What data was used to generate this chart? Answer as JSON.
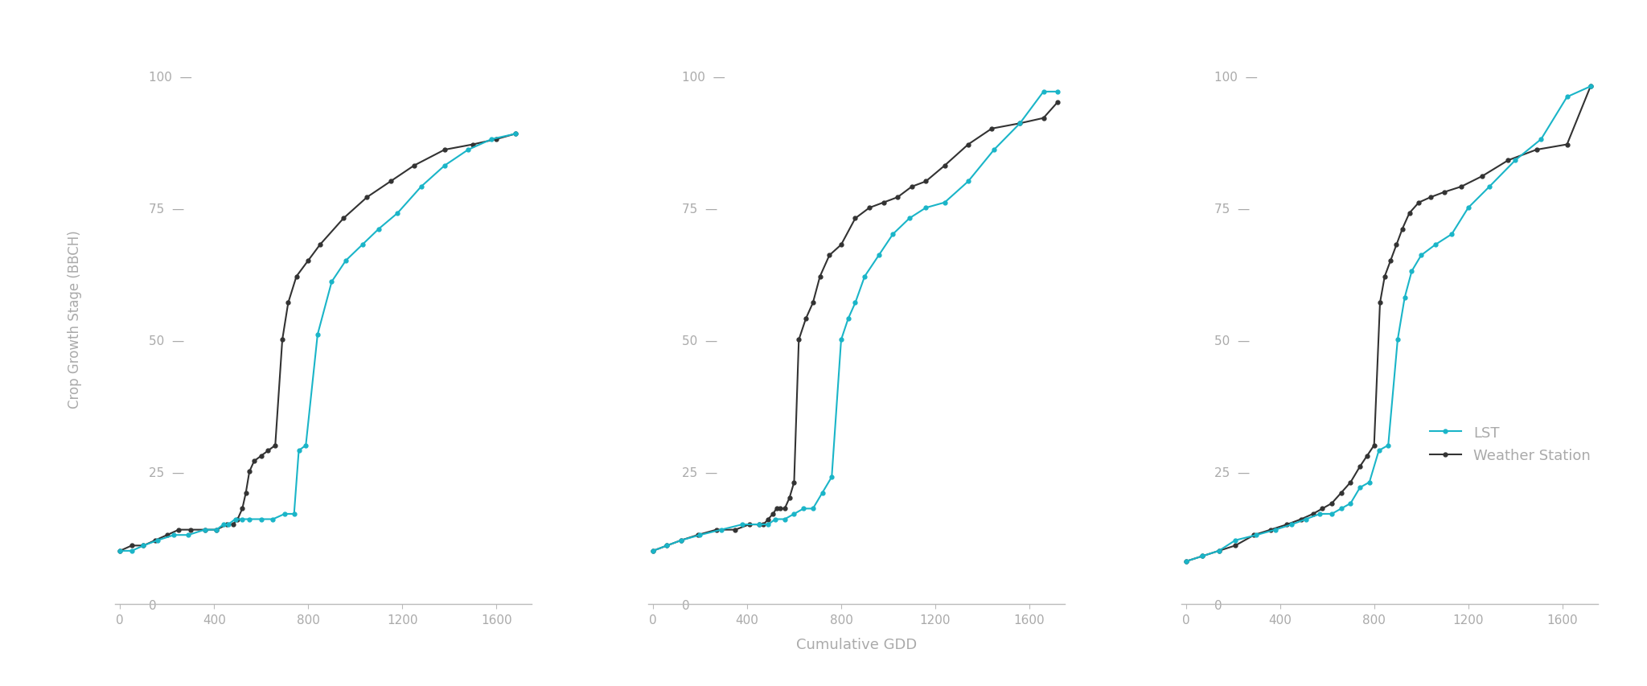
{
  "lst_color": "#1ab5c8",
  "ws_color": "#333333",
  "bg_color": "#ffffff",
  "tick_color": "#bbbbbb",
  "label_color": "#aaaaaa",
  "ylabel": "Crop Growth Stage (BBCH)",
  "xlabel": "Cumulative GDD",
  "legend_labels": [
    "LST",
    "Weather Station"
  ],
  "ylim": [
    0,
    108
  ],
  "xlim": [
    -20,
    1750
  ],
  "yticks": [
    0,
    25,
    50,
    75,
    100
  ],
  "xticks": [
    0,
    400,
    800,
    1200,
    1600
  ],
  "year2021_lst_x": [
    0,
    50,
    100,
    160,
    230,
    290,
    360,
    410,
    440,
    460,
    490,
    520,
    550,
    600,
    650,
    700,
    740,
    760,
    790,
    840,
    900,
    960,
    1030,
    1100,
    1180,
    1280,
    1380,
    1480,
    1580,
    1680
  ],
  "year2021_lst_y": [
    10,
    10,
    11,
    12,
    13,
    13,
    14,
    14,
    15,
    15,
    16,
    16,
    16,
    16,
    16,
    17,
    17,
    29,
    30,
    51,
    61,
    65,
    68,
    71,
    74,
    79,
    83,
    86,
    88,
    89
  ],
  "year2021_ws_x": [
    0,
    50,
    100,
    150,
    200,
    250,
    300,
    360,
    410,
    455,
    480,
    500,
    520,
    535,
    550,
    570,
    600,
    630,
    660,
    690,
    715,
    750,
    800,
    850,
    950,
    1050,
    1150,
    1250,
    1380,
    1500,
    1600,
    1680
  ],
  "year2021_ws_y": [
    10,
    11,
    11,
    12,
    13,
    14,
    14,
    14,
    14,
    15,
    15,
    16,
    18,
    21,
    25,
    27,
    28,
    29,
    30,
    50,
    57,
    62,
    65,
    68,
    73,
    77,
    80,
    83,
    86,
    87,
    88,
    89
  ],
  "year2022_lst_x": [
    0,
    60,
    120,
    200,
    290,
    380,
    450,
    490,
    520,
    560,
    600,
    640,
    680,
    720,
    760,
    800,
    830,
    860,
    900,
    960,
    1020,
    1090,
    1160,
    1240,
    1340,
    1450,
    1560,
    1660,
    1720
  ],
  "year2022_lst_y": [
    10,
    11,
    12,
    13,
    14,
    15,
    15,
    15,
    16,
    16,
    17,
    18,
    18,
    21,
    24,
    50,
    54,
    57,
    62,
    66,
    70,
    73,
    75,
    76,
    80,
    86,
    91,
    97,
    97
  ],
  "year2022_ws_x": [
    0,
    60,
    120,
    190,
    270,
    350,
    410,
    450,
    470,
    490,
    510,
    525,
    540,
    560,
    580,
    600,
    620,
    650,
    680,
    710,
    750,
    800,
    860,
    920,
    980,
    1040,
    1100,
    1160,
    1240,
    1340,
    1440,
    1560,
    1660,
    1720
  ],
  "year2022_ws_y": [
    10,
    11,
    12,
    13,
    14,
    14,
    15,
    15,
    15,
    16,
    17,
    18,
    18,
    18,
    20,
    23,
    50,
    54,
    57,
    62,
    66,
    68,
    73,
    75,
    76,
    77,
    79,
    80,
    83,
    87,
    90,
    91,
    92,
    95
  ],
  "year2023_lst_x": [
    0,
    70,
    140,
    210,
    300,
    380,
    450,
    510,
    570,
    620,
    660,
    700,
    740,
    780,
    820,
    860,
    900,
    930,
    960,
    1000,
    1060,
    1130,
    1200,
    1290,
    1400,
    1510,
    1620,
    1720
  ],
  "year2023_lst_y": [
    8,
    9,
    10,
    12,
    13,
    14,
    15,
    16,
    17,
    17,
    18,
    19,
    22,
    23,
    29,
    30,
    50,
    58,
    63,
    66,
    68,
    70,
    75,
    79,
    84,
    88,
    96,
    98
  ],
  "year2023_ws_x": [
    0,
    70,
    140,
    210,
    290,
    360,
    430,
    490,
    540,
    580,
    620,
    660,
    700,
    740,
    770,
    800,
    825,
    845,
    870,
    895,
    920,
    950,
    990,
    1040,
    1100,
    1170,
    1260,
    1370,
    1490,
    1620,
    1720
  ],
  "year2023_ws_y": [
    8,
    9,
    10,
    11,
    13,
    14,
    15,
    16,
    17,
    18,
    19,
    21,
    23,
    26,
    28,
    30,
    57,
    62,
    65,
    68,
    71,
    74,
    76,
    77,
    78,
    79,
    81,
    84,
    86,
    87,
    98
  ]
}
